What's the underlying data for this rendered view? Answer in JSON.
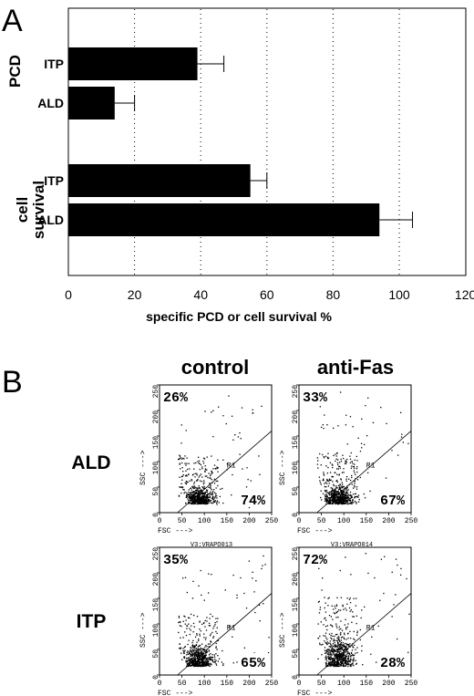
{
  "panel_a": {
    "letter": "A",
    "xlabel": "specific PCD or cell survival %",
    "groups": [
      "PCD",
      "cell survival"
    ],
    "tick_labels": [
      "0",
      "20",
      "40",
      "60",
      "80",
      "100",
      "120"
    ]
  },
  "panel_b": {
    "letter": "B",
    "col_headers": [
      "control",
      "anti-Fas"
    ],
    "row_headers": [
      "ALD",
      "ITP"
    ],
    "plot_ids": [
      "V3:VRAPO013",
      "V3:VRAPO014"
    ]
  },
  "chart_data": [
    {
      "type": "bar",
      "orientation": "horizontal",
      "categories": [
        "ITP",
        "ALD",
        "ITP",
        "ALD"
      ],
      "groups": [
        {
          "name": "PCD",
          "categories": [
            "ITP",
            "ALD"
          ]
        },
        {
          "name": "cell survival",
          "categories": [
            "ITP",
            "ALD"
          ]
        }
      ],
      "values": [
        39,
        14,
        55,
        94
      ],
      "error": [
        8,
        6,
        5,
        10
      ],
      "xlabel": "specific PCD or cell survival %",
      "xlim": [
        0,
        120
      ],
      "xticks": [
        0,
        20,
        40,
        60,
        80,
        100,
        120
      ],
      "grid": "vertical dotted"
    },
    {
      "type": "scatter",
      "panels": [
        {
          "row": "ALD",
          "col": "control",
          "upper_left": "26%",
          "lower_right": "74%"
        },
        {
          "row": "ALD",
          "col": "anti-Fas",
          "upper_left": "33%",
          "lower_right": "67%"
        },
        {
          "row": "ITP",
          "col": "control",
          "upper_left": "35%",
          "lower_right": "65%"
        },
        {
          "row": "ITP",
          "col": "anti-Fas",
          "upper_left": "72%",
          "lower_right": "28%"
        }
      ],
      "xlabel": "FSC --->",
      "ylabel": "SSC --->",
      "xlim": [
        0,
        250
      ],
      "ylim": [
        0,
        250
      ],
      "xticks": [
        0,
        50,
        100,
        150,
        200,
        250
      ],
      "yticks": [
        0,
        50,
        100,
        150,
        200,
        250
      ],
      "gate_label": "R1"
    }
  ]
}
